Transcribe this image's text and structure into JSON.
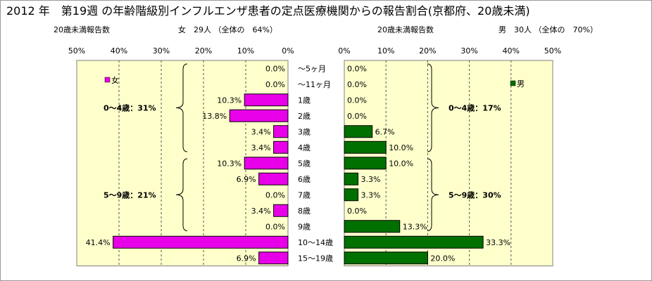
{
  "title": "2012 年　第19週 の年齢階級別インフルエンザ患者の定点医療機関からの報告割合(京都府、20歳未満)",
  "female_header": {
    "label": "20歳未満報告数",
    "summary": "女　29人 （全体の　64%）"
  },
  "male_header": {
    "label": "20歳未満報告数",
    "summary": "男　30人 （全体の　70%）"
  },
  "colors": {
    "female": "#e800e8",
    "male": "#007000",
    "plot_bg": "#ffffcc",
    "gridline": "#555555"
  },
  "chart_data": [
    {
      "type": "bar",
      "orientation": "horizontal",
      "direction": "right-to-left",
      "categories": [
        "〜5ヶ月",
        "〜11ヶ月",
        "1歳",
        "2歳",
        "3歳",
        "4歳",
        "5歳",
        "6歳",
        "7歳",
        "8歳",
        "9歳",
        "10〜14歳",
        "15〜19歳"
      ],
      "series": [
        {
          "name": "女",
          "values": [
            0.0,
            0.0,
            10.3,
            13.8,
            3.4,
            3.4,
            10.3,
            6.9,
            0.0,
            3.4,
            0.0,
            41.4,
            6.9
          ]
        }
      ],
      "data_labels": [
        "0.0%",
        "0.0%",
        "10.3%",
        "13.8%",
        "3.4%",
        "3.4%",
        "10.3%",
        "6.9%",
        "0.0%",
        "3.4%",
        "0.0%",
        "41.4%",
        "6.9%"
      ],
      "xlim": [
        0,
        50
      ],
      "x_ticks": [
        "50%",
        "40%",
        "30%",
        "20%",
        "10%",
        "0%"
      ],
      "legend": "女",
      "legend_position": "top-left",
      "grid": true,
      "annotations": [
        {
          "text": "0〜4歳：31%",
          "categories": [
            "〜5ヶ月",
            "4歳"
          ]
        },
        {
          "text": "5〜9歳：21%",
          "categories": [
            "5歳",
            "9歳"
          ]
        }
      ]
    },
    {
      "type": "bar",
      "orientation": "horizontal",
      "direction": "left-to-right",
      "categories": [
        "〜5ヶ月",
        "〜11ヶ月",
        "1歳",
        "2歳",
        "3歳",
        "4歳",
        "5歳",
        "6歳",
        "7歳",
        "8歳",
        "9歳",
        "10〜14歳",
        "15〜19歳"
      ],
      "series": [
        {
          "name": "男",
          "values": [
            0.0,
            0.0,
            0.0,
            0.0,
            6.7,
            10.0,
            10.0,
            3.3,
            3.3,
            0.0,
            13.3,
            33.3,
            20.0
          ]
        }
      ],
      "data_labels": [
        "0.0%",
        "0.0%",
        "0.0%",
        "0.0%",
        "6.7%",
        "10.0%",
        "10.0%",
        "3.3%",
        "3.3%",
        "0.0%",
        "13.3%",
        "33.3%",
        "20.0%"
      ],
      "xlim": [
        0,
        50
      ],
      "x_ticks": [
        "0%",
        "10%",
        "20%",
        "30%",
        "40%",
        "50%"
      ],
      "legend": "男",
      "legend_position": "top-right",
      "grid": true,
      "annotations": [
        {
          "text": "0〜4歳：17%",
          "categories": [
            "〜5ヶ月",
            "4歳"
          ]
        },
        {
          "text": "5〜9歳：30%",
          "categories": [
            "5歳",
            "9歳"
          ]
        }
      ]
    }
  ]
}
